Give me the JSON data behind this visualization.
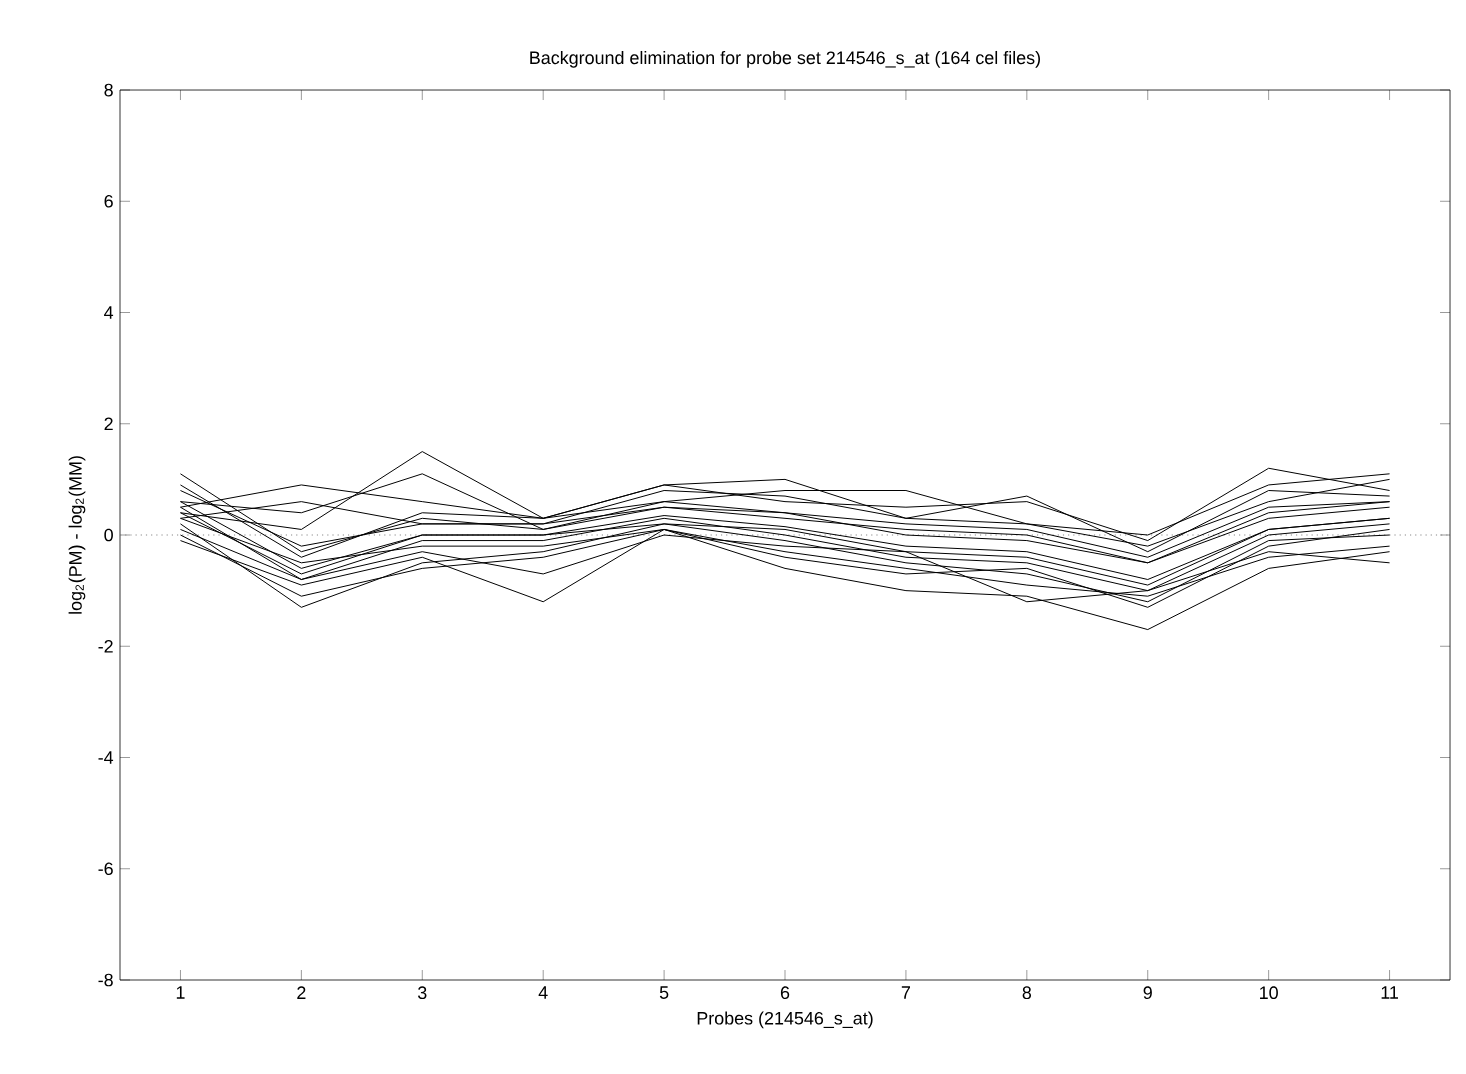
{
  "chart_data": {
    "type": "line",
    "title": "Background elimination for probe set 214546_s_at (164 cel files)",
    "xlabel": "Probes (214546_s_at)",
    "ylabel": "log$_{2}$(PM) - log$_{2}$(MM)",
    "x": [
      1,
      2,
      3,
      4,
      5,
      6,
      7,
      8,
      9,
      10,
      11
    ],
    "xlim": [
      0.5,
      11.5
    ],
    "xticks": [
      1,
      2,
      3,
      4,
      5,
      6,
      7,
      8,
      9,
      10,
      11
    ],
    "ylim": [
      -8,
      8
    ],
    "yticks": [
      -8,
      -6,
      -4,
      -2,
      0,
      2,
      4,
      6,
      8
    ],
    "marker": "none",
    "line_style": "solid",
    "ref_lines": [
      {
        "axis": "y",
        "value": 0,
        "color": "#888888",
        "line_style": "dotted"
      }
    ],
    "series": [
      {
        "color": "#000000",
        "values": [
          0.6,
          -0.6,
          0,
          0,
          0.35,
          0.15,
          -0.2,
          -0.3,
          -0.8,
          0.1,
          0.3
        ]
      },
      {
        "color": "#000000",
        "values": [
          1.1,
          -0.3,
          0.3,
          0.1,
          0.5,
          0.3,
          0.1,
          0,
          -0.5,
          0.4,
          0.6
        ]
      },
      {
        "color": "#000000",
        "values": [
          0.5,
          0.9,
          0.6,
          0.3,
          0.9,
          1.0,
          0.3,
          0.2,
          -0.2,
          0.6,
          1.0
        ]
      },
      {
        "color": "#000000",
        "values": [
          0.4,
          0.1,
          1.5,
          0.3,
          0.9,
          0.6,
          0.5,
          0.6,
          -0.1,
          1.2,
          0.8
        ]
      },
      {
        "color": "#000000",
        "values": [
          0.6,
          0.4,
          1.1,
          0.1,
          0.6,
          0.8,
          0.8,
          0.2,
          0,
          0.9,
          1.1
        ]
      },
      {
        "color": "#000000",
        "values": [
          0.3,
          0.6,
          0.2,
          0.2,
          0.8,
          0.7,
          0.3,
          0.7,
          -0.3,
          0.8,
          0.7
        ]
      },
      {
        "color": "#000000",
        "values": [
          0.2,
          -1.3,
          -0.5,
          -0.3,
          0.2,
          -0.1,
          -0.5,
          -0.7,
          -1.2,
          -0.1,
          0
        ]
      },
      {
        "color": "#000000",
        "values": [
          -0.1,
          -0.9,
          -0.4,
          -1.2,
          0.1,
          -0.6,
          -1.0,
          -1.1,
          -1.7,
          -0.6,
          -0.3
        ]
      },
      {
        "color": "#000000",
        "values": [
          0.1,
          -0.8,
          -0.3,
          -0.7,
          0,
          -0.2,
          -0.3,
          -1.2,
          -1.0,
          -0.3,
          -0.5
        ]
      },
      {
        "color": "#000000",
        "values": [
          0,
          -1.1,
          -0.6,
          -0.4,
          0.1,
          -0.4,
          -0.7,
          -0.6,
          -1.3,
          -0.2,
          0.1
        ]
      },
      {
        "color": "#000000",
        "values": [
          0.3,
          -0.5,
          -0.2,
          -0.2,
          0.1,
          -0.3,
          -0.6,
          -0.9,
          -1.1,
          -0.4,
          -0.2
        ]
      },
      {
        "color": "#000000",
        "values": [
          0.8,
          -0.2,
          0.2,
          0.2,
          0.5,
          0.4,
          0,
          -0.1,
          -0.5,
          0.3,
          0.5
        ]
      },
      {
        "color": "#000000",
        "values": [
          0.5,
          -0.8,
          -0.1,
          -0.1,
          0.3,
          0,
          -0.4,
          -0.5,
          -1.0,
          0,
          0.2
        ]
      },
      {
        "color": "#000000",
        "values": [
          0.9,
          -0.4,
          0.4,
          0.3,
          0.6,
          0.4,
          0.2,
          0.1,
          -0.4,
          0.5,
          0.6
        ]
      },
      {
        "color": "#000000",
        "values": [
          0.4,
          -0.7,
          0,
          0,
          0.2,
          0.1,
          -0.3,
          -0.4,
          -0.9,
          0.1,
          0.3
        ]
      }
    ]
  }
}
